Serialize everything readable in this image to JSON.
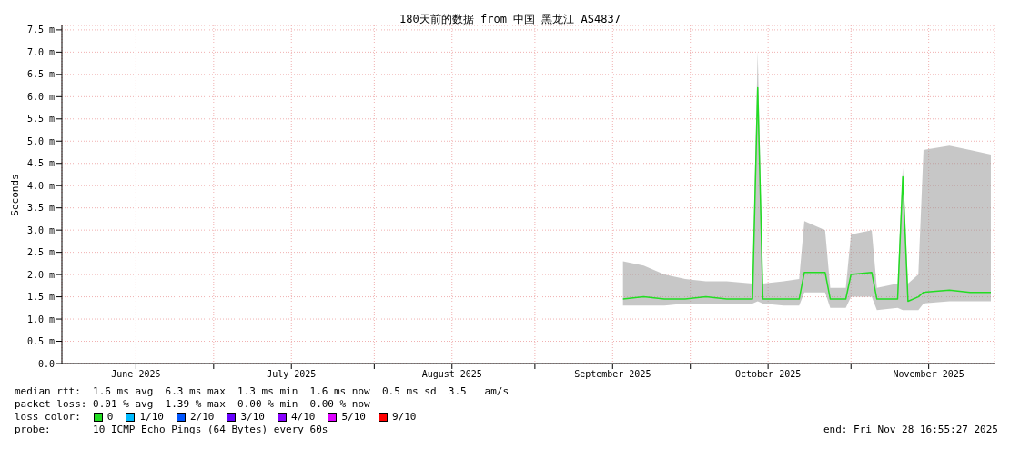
{
  "chart_data": {
    "type": "line",
    "title": "180天前的数据 from 中国 黑龙江 AS4837",
    "ylabel": "Seconds",
    "x": [
      "2025-09-18",
      "2025-09-22",
      "2025-09-26",
      "2025-09-30",
      "2025-10-04",
      "2025-10-08",
      "2025-10-13",
      "2025-10-14",
      "2025-10-15",
      "2025-10-19",
      "2025-10-22",
      "2025-10-23",
      "2025-10-27",
      "2025-10-28",
      "2025-10-31",
      "2025-11-01",
      "2025-11-05",
      "2025-11-06",
      "2025-11-10",
      "2025-11-11",
      "2025-11-12",
      "2025-11-14",
      "2025-11-15",
      "2025-11-20",
      "2025-11-24",
      "2025-11-28"
    ],
    "series": [
      {
        "name": "0",
        "color": "#22dd22",
        "values": [
          1.45,
          1.5,
          1.45,
          1.45,
          1.5,
          1.45,
          1.45,
          6.2,
          1.45,
          1.45,
          1.45,
          2.05,
          2.05,
          1.45,
          1.45,
          2.0,
          2.05,
          1.45,
          1.45,
          4.2,
          1.4,
          1.5,
          1.6,
          1.65,
          1.6,
          1.6
        ],
        "lower": [
          1.3,
          1.3,
          1.3,
          1.35,
          1.35,
          1.35,
          1.35,
          1.4,
          1.35,
          1.3,
          1.3,
          1.6,
          1.6,
          1.25,
          1.25,
          1.5,
          1.5,
          1.2,
          1.25,
          1.2,
          1.2,
          1.2,
          1.35,
          1.4,
          1.4,
          1.4
        ],
        "upper": [
          2.3,
          2.2,
          2.0,
          1.9,
          1.85,
          1.85,
          1.8,
          7.0,
          1.8,
          1.85,
          1.9,
          3.2,
          3.0,
          1.7,
          1.7,
          2.9,
          3.0,
          1.7,
          1.8,
          4.4,
          1.8,
          2.0,
          4.8,
          4.9,
          4.8,
          4.7
        ]
      },
      {
        "name": "1/10",
        "color": "#00bbff",
        "values": [
          null,
          null,
          null,
          null,
          null,
          null,
          null,
          null,
          null,
          null,
          null,
          null,
          null,
          null,
          null,
          null,
          null,
          null,
          null,
          null,
          null,
          null,
          null,
          null,
          null,
          null
        ]
      },
      {
        "name": "2/10",
        "color": "#0055ff",
        "values": [
          null,
          null,
          null,
          null,
          null,
          null,
          null,
          null,
          null,
          null,
          null,
          null,
          null,
          null,
          null,
          null,
          null,
          null,
          null,
          null,
          null,
          null,
          null,
          null,
          null,
          null
        ]
      },
      {
        "name": "3/10",
        "color": "#6600ff",
        "values": [
          null,
          null,
          null,
          null,
          null,
          null,
          null,
          null,
          null,
          null,
          null,
          null,
          null,
          null,
          null,
          null,
          null,
          null,
          null,
          null,
          null,
          null,
          null,
          null,
          null,
          null
        ]
      },
      {
        "name": "4/10",
        "color": "#8800ff",
        "values": [
          null,
          null,
          null,
          null,
          null,
          null,
          null,
          null,
          null,
          null,
          null,
          null,
          null,
          null,
          null,
          null,
          null,
          null,
          null,
          null,
          null,
          null,
          null,
          null,
          null,
          null
        ]
      },
      {
        "name": "5/10",
        "color": "#dd00ff",
        "values": [
          null,
          null,
          null,
          null,
          null,
          null,
          null,
          null,
          null,
          null,
          null,
          null,
          null,
          null,
          null,
          null,
          null,
          null,
          null,
          null,
          null,
          null,
          null,
          null,
          null,
          null
        ]
      },
      {
        "name": "9/10",
        "color": "#ff0000",
        "values": [
          null,
          null,
          null,
          null,
          null,
          null,
          null,
          null,
          null,
          null,
          null,
          null,
          null,
          null,
          null,
          null,
          null,
          null,
          null,
          null,
          null,
          null,
          null,
          null,
          null,
          null
        ]
      }
    ],
    "legend_title": "loss color:",
    "legend": "bottom",
    "marker": "none",
    "line_style": "solid",
    "grid": true,
    "xlim": [
      "2025-06-01T16:55",
      "2025-11-28T16:55"
    ],
    "xticks": [
      {
        "value": "2025-06-16",
        "label": "June 2025"
      },
      {
        "value": "2025-07-01",
        "label": null
      },
      {
        "value": "2025-07-16",
        "label": "July 2025"
      },
      {
        "value": "2025-08-01",
        "label": null
      },
      {
        "value": "2025-08-16",
        "label": "August 2025"
      },
      {
        "value": "2025-09-01",
        "label": null
      },
      {
        "value": "2025-09-16",
        "label": "September 2025"
      },
      {
        "value": "2025-10-01",
        "label": null
      },
      {
        "value": "2025-10-16",
        "label": "October 2025"
      },
      {
        "value": "2025-11-01",
        "label": null
      },
      {
        "value": "2025-11-16",
        "label": "November 2025"
      }
    ],
    "ylim": [
      0,
      7.6
    ],
    "yticks": [
      {
        "value": 0,
        "label": "0.0"
      },
      {
        "value": 0.5,
        "label": "0.5 m"
      },
      {
        "value": 1,
        "label": "1.0 m"
      },
      {
        "value": 1.5,
        "label": "1.5 m"
      },
      {
        "value": 2,
        "label": "2.0 m"
      },
      {
        "value": 2.5,
        "label": "2.5 m"
      },
      {
        "value": 3,
        "label": "3.0 m"
      },
      {
        "value": 3.5,
        "label": "3.5 m"
      },
      {
        "value": 4,
        "label": "4.0 m"
      },
      {
        "value": 4.5,
        "label": "4.5 m"
      },
      {
        "value": 5,
        "label": "5.0 m"
      },
      {
        "value": 5.5,
        "label": "5.5 m"
      },
      {
        "value": 6,
        "label": "6.0 m"
      },
      {
        "value": 6.5,
        "label": "6.5 m"
      },
      {
        "value": 7,
        "label": "7.0 m"
      },
      {
        "value": 7.5,
        "label": "7.5 m"
      }
    ],
    "annotations": [
      "median rtt:  1.6 ms avg  6.3 ms max  1.3 ms min  1.6 ms now  0.5 ms sd  3.5   am/s",
      "packet loss: 0.01 % avg  1.39 % max  0.00 % min  0.00 % now",
      "probe:       10 ICMP Echo Pings (64 Bytes) every 60s",
      "end: Fri Nov 28 16:55:27 2025"
    ]
  }
}
